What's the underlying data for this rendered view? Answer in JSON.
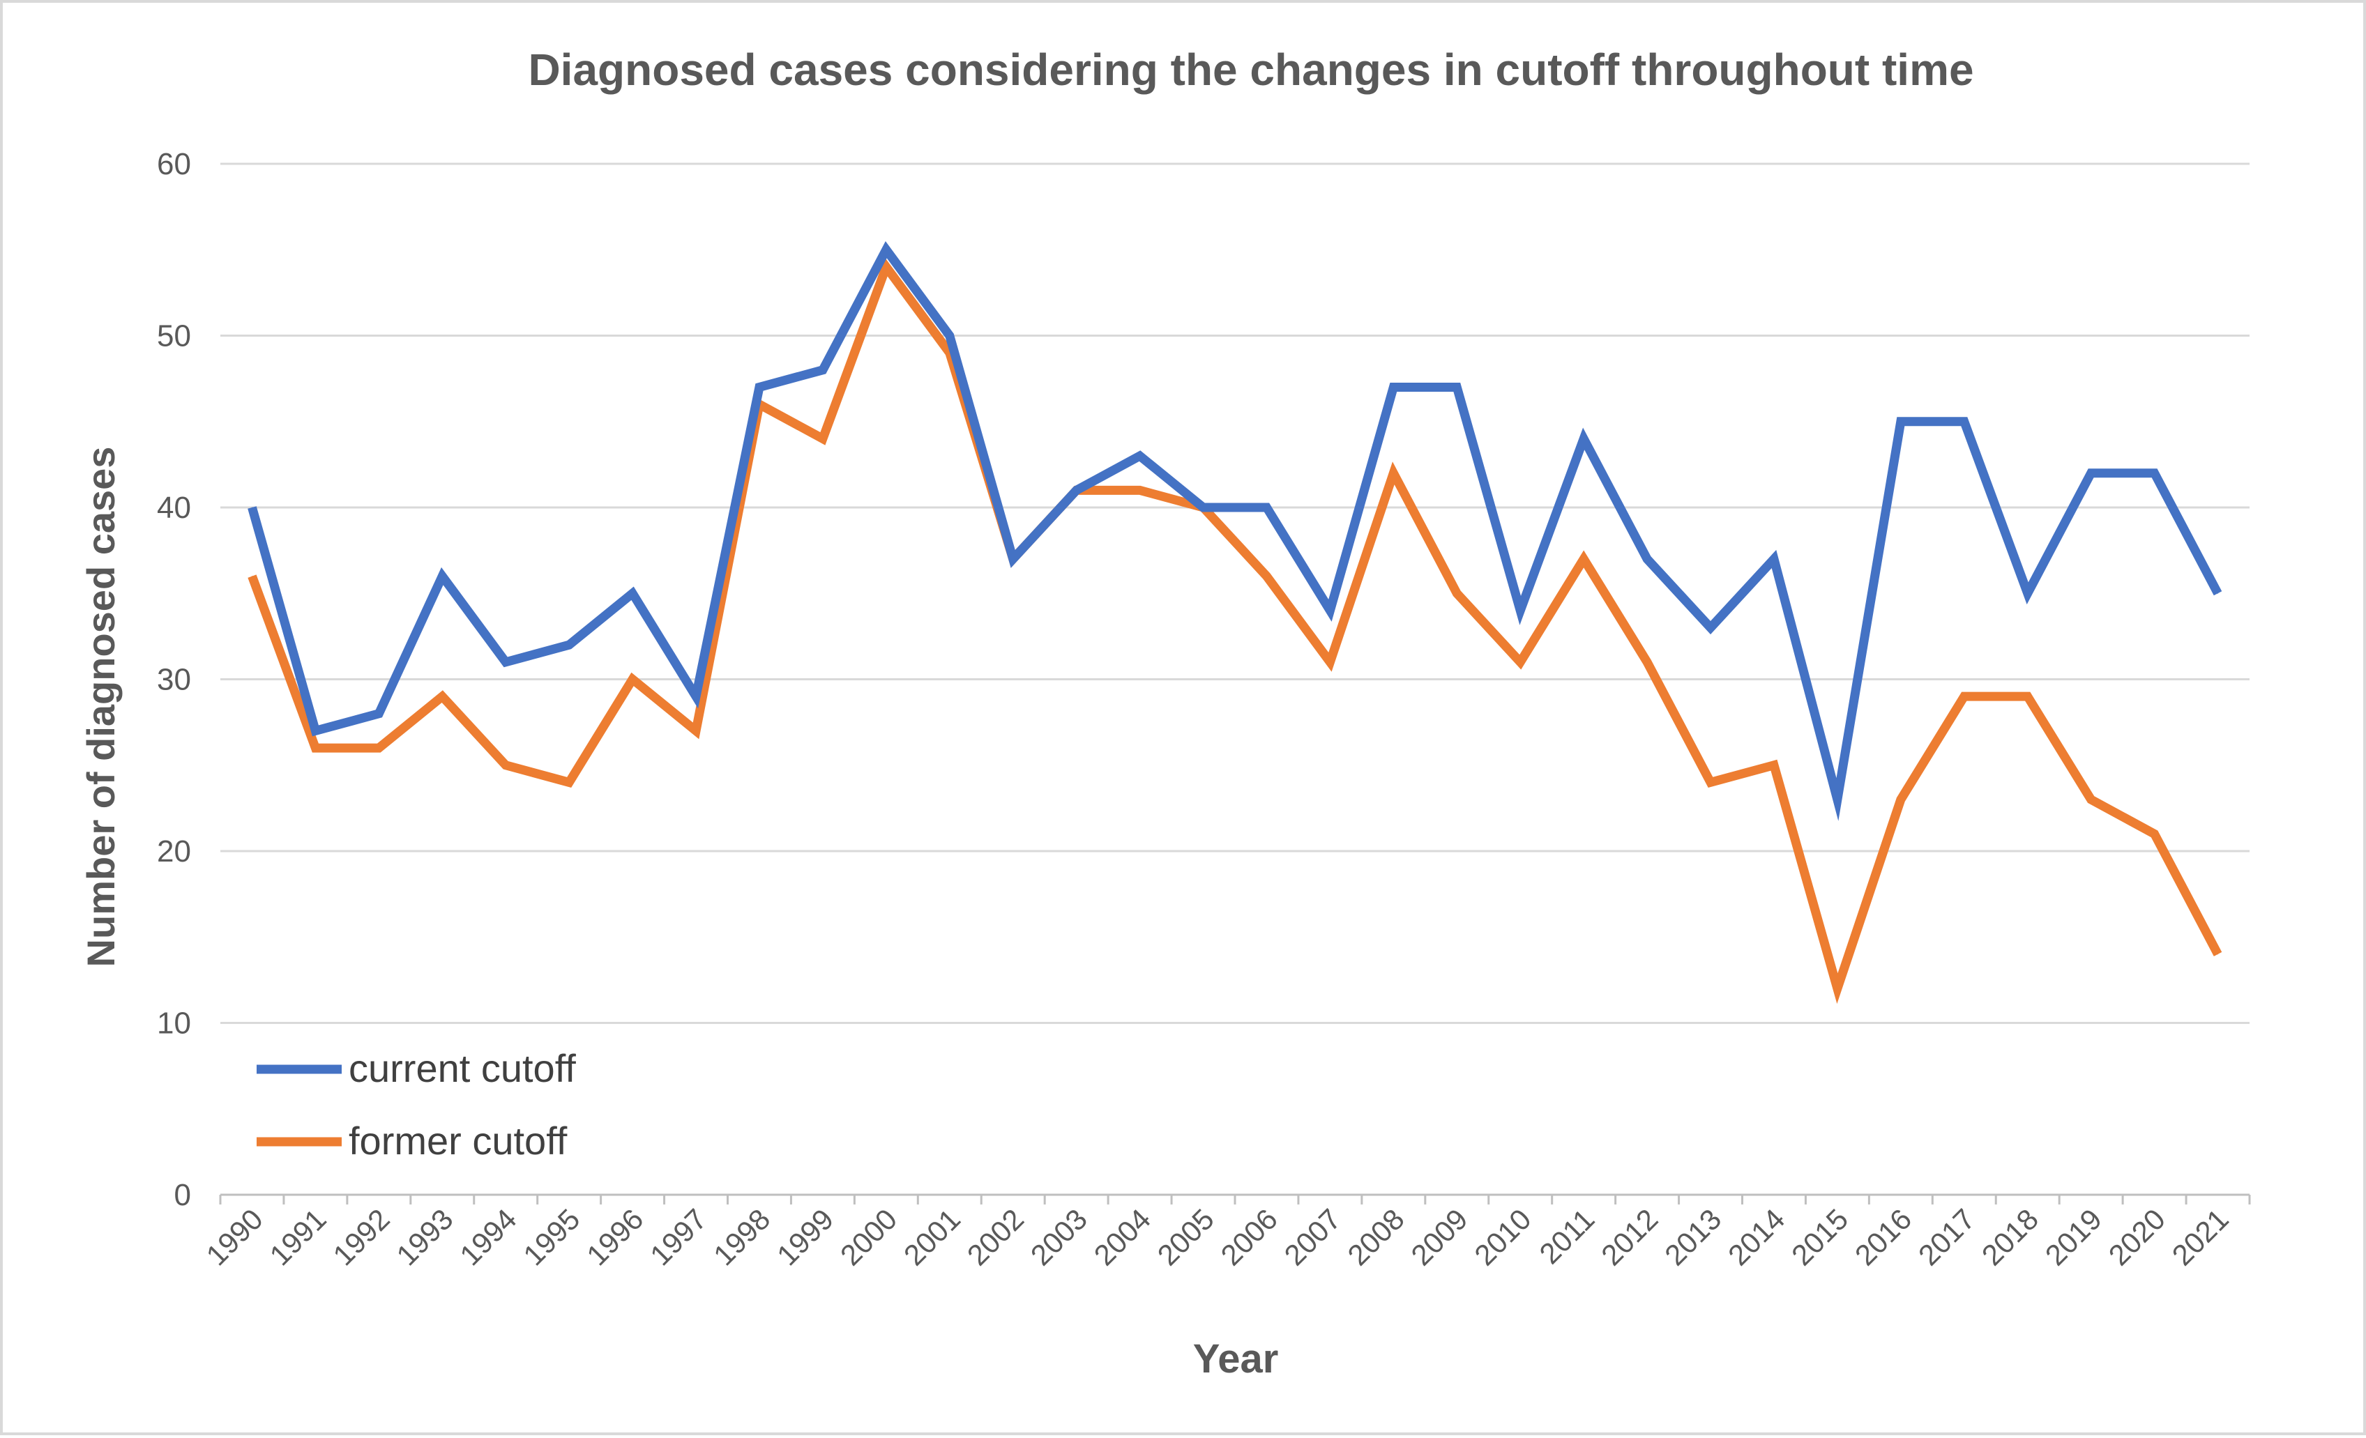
{
  "chart_data": {
    "type": "line",
    "title": "Diagnosed cases considering the changes in cutoff throughout time",
    "xlabel": "Year",
    "ylabel": "Number of diagnosed cases",
    "ylim": [
      0,
      60
    ],
    "y_ticks": [
      "0",
      "10",
      "20",
      "30",
      "40",
      "50",
      "60"
    ],
    "grid": true,
    "legend_position": "bottom-left",
    "categories": [
      "1990",
      "1991",
      "1992",
      "1993",
      "1994",
      "1995",
      "1996",
      "1997",
      "1998",
      "1999",
      "2000",
      "2001",
      "2002",
      "2003",
      "2004",
      "2005",
      "2006",
      "2007",
      "2008",
      "2009",
      "2010",
      "2011",
      "2012",
      "2013",
      "2014",
      "2015",
      "2016",
      "2017",
      "2018",
      "2019",
      "2020",
      "2021"
    ],
    "series": [
      {
        "name": "current cutoff",
        "color": "#4472c4",
        "values": [
          40,
          27,
          28,
          36,
          31,
          32,
          35,
          29,
          47,
          48,
          55,
          50,
          37,
          41,
          43,
          40,
          40,
          34,
          47,
          47,
          34,
          44,
          37,
          33,
          37,
          23,
          45,
          45,
          35,
          42,
          42,
          35
        ]
      },
      {
        "name": "former cutoff",
        "color": "#ed7d31",
        "values": [
          36,
          26,
          26,
          29,
          25,
          24,
          30,
          27,
          46,
          44,
          54,
          49,
          37,
          41,
          41,
          40,
          36,
          31,
          42,
          35,
          31,
          37,
          31,
          24,
          25,
          12,
          23,
          29,
          29,
          23,
          21,
          14
        ]
      }
    ]
  }
}
